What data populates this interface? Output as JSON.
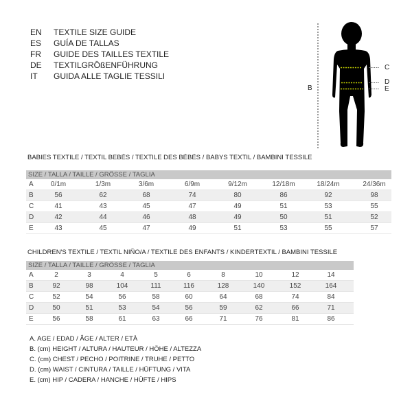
{
  "header": [
    {
      "code": "EN",
      "text": "TEXTILE SIZE GUIDE"
    },
    {
      "code": "ES",
      "text": "GUÍA DE TALLAS"
    },
    {
      "code": "FR",
      "text": "GUIDE DES TAILLES TEXTILE"
    },
    {
      "code": "DE",
      "text": "TEXTILGRÖßENFÜHRUNG"
    },
    {
      "code": "IT",
      "text": "GUIDA ALLE TAGLIE TESSILI"
    }
  ],
  "figure": {
    "labels": {
      "b": "B",
      "c": "C",
      "d": "D",
      "e": "E"
    },
    "accent": "#c8d400"
  },
  "babies": {
    "title": "BABIES TEXTILE / TEXTIL BEBÉS / TEXTILE DES BÉBÉS / BABYS TEXTIL  / BAMBINI TESSILE",
    "band": "SIZE / TALLA / TAILLE / GRÖSSE / TAGLIA",
    "rows": [
      {
        "label": "A",
        "values": [
          "0/1m",
          "1/3m",
          "3/6m",
          "6/9m",
          "9/12m",
          "12/18m",
          "18/24m",
          "24/36m"
        ]
      },
      {
        "label": "B",
        "values": [
          "56",
          "62",
          "68",
          "74",
          "80",
          "86",
          "92",
          "98"
        ]
      },
      {
        "label": "C",
        "values": [
          "41",
          "43",
          "45",
          "47",
          "49",
          "51",
          "53",
          "55"
        ]
      },
      {
        "label": "D",
        "values": [
          "42",
          "44",
          "46",
          "48",
          "49",
          "50",
          "51",
          "52"
        ]
      },
      {
        "label": "E",
        "values": [
          "43",
          "45",
          "47",
          "49",
          "51",
          "53",
          "55",
          "57"
        ]
      }
    ]
  },
  "children": {
    "title": "CHILDREN'S TEXTILE / TEXTIL NIÑO/A / TEXTILE DES ENFANTS / KINDERTEXTIL / BAMBINI TESSILE",
    "band": "SIZE / TALLA / TAILLE / GRÖSSE / TAGLIA",
    "rows": [
      {
        "label": "A",
        "values": [
          "2",
          "3",
          "4",
          "5",
          "6",
          "8",
          "10",
          "12",
          "14"
        ]
      },
      {
        "label": "B",
        "values": [
          "92",
          "98",
          "104",
          "111",
          "116",
          "128",
          "140",
          "152",
          "164"
        ]
      },
      {
        "label": "C",
        "values": [
          "52",
          "54",
          "56",
          "58",
          "60",
          "64",
          "68",
          "74",
          "84"
        ]
      },
      {
        "label": "D",
        "values": [
          "50",
          "51",
          "53",
          "54",
          "56",
          "59",
          "62",
          "66",
          "71"
        ]
      },
      {
        "label": "E",
        "values": [
          "56",
          "58",
          "61",
          "63",
          "66",
          "71",
          "76",
          "81",
          "86"
        ]
      }
    ]
  },
  "legend": [
    "A. AGE / EDAD / ÂGE / ALTER / ETÀ",
    "B. (cm) HEIGHT / ALTURA / HAUTEUR / HÖHE / ALTEZZA",
    "C. (cm) CHEST / PECHO / POITRINE / TRUHE / PETTO",
    "D. (cm) WAIST / CINTURA / TAILLE / HÜFTUNG / VITA",
    "E. (cm) HIP / CADERA / HANCHE / HÜFTE / HIPS"
  ]
}
